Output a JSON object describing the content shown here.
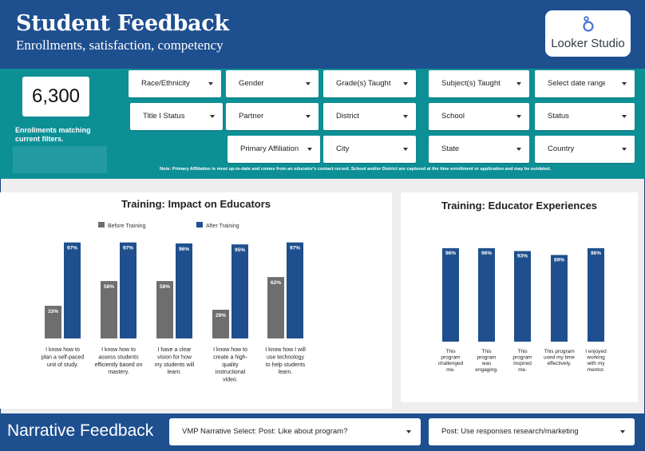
{
  "header": {
    "title": "Student Feedback",
    "subtitle": "Enrollments, satisfaction, competency",
    "logo_text": "Looker Studio"
  },
  "scorecard": {
    "value": "6,300",
    "label": "Enrollments matching current filters."
  },
  "filters": [
    {
      "label": "Race/Ethnicity"
    },
    {
      "label": "Gender"
    },
    {
      "label": "Grade(s) Taught"
    },
    {
      "label": "Subject(s) Taught"
    },
    {
      "label": "Select date range"
    },
    {
      "label": "Title I Status"
    },
    {
      "label": "Partner"
    },
    {
      "label": "District"
    },
    {
      "label": "School"
    },
    {
      "label": "Status"
    },
    {
      "label": "Primary Affiliation"
    },
    {
      "label": "City"
    },
    {
      "label": "State"
    },
    {
      "label": "Country"
    }
  ],
  "note": "Note: Primary Affiliation is most up-to-date and comes from an educator's contact record. School and/or District are captured at the time enrollment or application and may be outdated.",
  "colors": {
    "header": "#1e4f8f",
    "filter_band": "#0d8f96",
    "before": "#6e6e6e",
    "after": "#1f4f8e"
  },
  "chart_data": [
    {
      "type": "bar",
      "title": "Training: Impact on Educators",
      "categories": [
        "I know how to plan a self-paced unit of study.",
        "I know how to assess students efficiently based on mastery.",
        "I have a clear vision for how my students will learn.",
        "I know how to create a high-quality instructional video.",
        "I know how I will use technology to help students learn."
      ],
      "category_lines": [
        [
          "I know how to",
          "plan a self-paced",
          "unit of study."
        ],
        [
          "I know how to",
          "assess students",
          "efficiently based on",
          "mastery."
        ],
        [
          "I have a clear",
          "vision for how",
          "my students will",
          "learn."
        ],
        [
          "I know how to",
          "create a high-",
          "quality",
          "instructional",
          "video."
        ],
        [
          "I know how I will",
          "use technology",
          "to help students",
          "learn."
        ]
      ],
      "series": [
        {
          "name": "Before Training",
          "values": [
            33,
            58,
            58,
            29,
            62
          ],
          "labels": [
            "33%",
            "58%",
            "58%",
            "29%",
            "62%"
          ]
        },
        {
          "name": "After Training",
          "values": [
            97,
            97,
            96,
            95,
            97
          ],
          "labels": [
            "97%",
            "97%",
            "96%",
            "95%",
            "97%"
          ]
        }
      ],
      "ylim": [
        0,
        100
      ],
      "legend": "top",
      "grid": false
    },
    {
      "type": "bar",
      "title": "Training: Educator Experiences",
      "categories": [
        "This program challenged me.",
        "This program was engaging.",
        "This program inspired me.",
        "This program used my time effectively.",
        "I enjoyed working with my mentor."
      ],
      "category_lines": [
        [
          "This",
          "program",
          "challenged",
          "me."
        ],
        [
          "This",
          "program",
          "was",
          "engaging."
        ],
        [
          "This",
          "program",
          "inspired",
          "me."
        ],
        [
          "This program",
          "used my time",
          "effectively."
        ],
        [
          "I enjoyed",
          "working",
          "with my",
          "mentor."
        ]
      ],
      "values": [
        96,
        96,
        93,
        89,
        96
      ],
      "labels": [
        "96%",
        "96%",
        "93%",
        "89%",
        "96%"
      ],
      "ylim": [
        0,
        100
      ],
      "grid": false
    }
  ],
  "footer": {
    "title": "Narrative Feedback",
    "select1_label": "VMP Narrative Select:",
    "select1_value": "Post: Like about program?",
    "select2_value": "Post: Use responses research/marketing"
  }
}
